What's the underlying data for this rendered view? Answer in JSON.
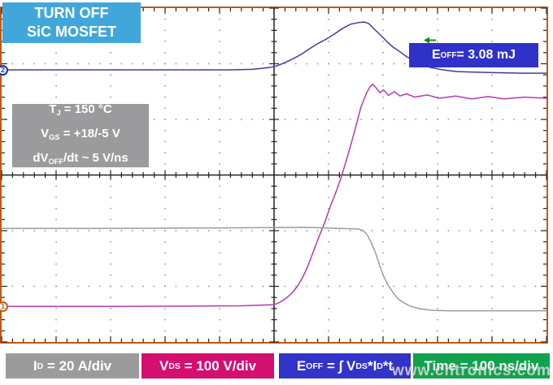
{
  "title_box": {
    "line1": "TURN OFF",
    "line2": "SiC MOSFET",
    "bg": "#41A7DB"
  },
  "conditions_box": {
    "bg": "#9B9B9D",
    "lines": [
      [
        {
          "t": "T"
        },
        {
          "t": "J",
          "sub": true
        },
        {
          "t": " = 150 °C"
        }
      ],
      [
        {
          "t": "V"
        },
        {
          "t": "GS",
          "sub": true
        },
        {
          "t": " = +18/-5 V"
        }
      ],
      [
        {
          "t": "dV"
        },
        {
          "t": "OFF",
          "sub": true
        },
        {
          "t": "/dt ~ 5 V/ns"
        }
      ]
    ]
  },
  "eoff_badge": {
    "bg": "#2F31C8",
    "rich": [
      {
        "t": "E"
      },
      {
        "t": "OFF",
        "sub": true
      },
      {
        "t": " = 3.08 mJ"
      }
    ]
  },
  "trigger_marker": {
    "color": "#168A16",
    "shape": "left-arrow"
  },
  "channel_markers": [
    {
      "label": "2",
      "color": "#23319B",
      "y_div": 1.12
    },
    {
      "label": "1",
      "color": "#C25B12",
      "y_div": 5.36
    }
  ],
  "legend": [
    {
      "bg": "#9B9B9D",
      "rich": [
        {
          "t": "I"
        },
        {
          "t": "D",
          "sub": true
        },
        {
          "t": " = 20 A/div"
        }
      ]
    },
    {
      "bg": "#D30F70",
      "rich": [
        {
          "t": "V"
        },
        {
          "t": "DS",
          "sub": true
        },
        {
          "t": " = 100 V/div"
        }
      ]
    },
    {
      "bg": "#3133C9",
      "rich": [
        {
          "t": "E"
        },
        {
          "t": "OFF",
          "sub": true
        },
        {
          "t": " = ∫ V"
        },
        {
          "t": "DS",
          "sub": true
        },
        {
          "t": "*I"
        },
        {
          "t": "D",
          "sub": true
        },
        {
          "t": "*t"
        }
      ]
    },
    {
      "bg": "#12A24D",
      "rich": [
        {
          "t": "Time = 100 ns/div"
        }
      ]
    }
  ],
  "watermark": {
    "text": "www.cntronics.com",
    "color": "#D9D9D9"
  },
  "chart_data": {
    "type": "line",
    "title": "TURN OFF SiC MOSFET",
    "grid": {
      "x_divisions": 10,
      "y_divisions": 6,
      "style": "oscilloscope graticule: dotted minor grid on division lines, solid ticked center axes, ticked border"
    },
    "axes": {
      "x": {
        "label": "Time",
        "scale_ns_per_div": 100,
        "range_ns": [
          0,
          1000
        ]
      }
    },
    "readings": {
      "eoff_mJ": 3.08,
      "vds_settle_V": 380,
      "vds_peak_overshoot_V": 403,
      "id_on_A": 30,
      "tj_C": 150,
      "vgs_V": "+18/-5",
      "dvoff_dt_V_per_ns": 5
    },
    "series": [
      {
        "id": "eoff",
        "name": "EOFF turn-off energy (math trace)",
        "color": "#3B3F9D",
        "scale": "math (peak 3.08 mJ shown in badge)",
        "points_div": [
          [
            0,
            1.11
          ],
          [
            1.5,
            1.11
          ],
          [
            3,
            1.11
          ],
          [
            4.2,
            1.11
          ],
          [
            4.6,
            1.1
          ],
          [
            4.9,
            1.07
          ],
          [
            5.05,
            1.04
          ],
          [
            5.2,
            0.98
          ],
          [
            5.35,
            0.91
          ],
          [
            5.5,
            0.83
          ],
          [
            5.65,
            0.73
          ],
          [
            5.8,
            0.64
          ],
          [
            5.95,
            0.56
          ],
          [
            6.1,
            0.47
          ],
          [
            6.25,
            0.37
          ],
          [
            6.4,
            0.29
          ],
          [
            6.55,
            0.26
          ],
          [
            6.66,
            0.25
          ],
          [
            6.74,
            0.28
          ],
          [
            6.84,
            0.38
          ],
          [
            6.95,
            0.48
          ],
          [
            7.06,
            0.59
          ],
          [
            7.18,
            0.7
          ],
          [
            7.29,
            0.77
          ],
          [
            7.43,
            0.87
          ],
          [
            7.58,
            0.95
          ],
          [
            7.73,
            1.02
          ],
          [
            7.88,
            1.07
          ],
          [
            8.1,
            1.11
          ],
          [
            8.35,
            1.14
          ],
          [
            8.65,
            1.15
          ],
          [
            9.1,
            1.16
          ],
          [
            9.55,
            1.17
          ],
          [
            10,
            1.17
          ]
        ]
      },
      {
        "id": "vds",
        "name": "VDS drain-source voltage",
        "color": "#B43CB0",
        "scale": "100 V/div",
        "zero_y_div": 5.36,
        "points_div": [
          [
            0,
            5.36
          ],
          [
            2.2,
            5.36
          ],
          [
            4.4,
            5.35
          ],
          [
            5.0,
            5.33
          ],
          [
            5.1,
            5.29
          ],
          [
            5.2,
            5.23
          ],
          [
            5.32,
            5.13
          ],
          [
            5.43,
            5.0
          ],
          [
            5.53,
            4.83
          ],
          [
            5.62,
            4.64
          ],
          [
            5.72,
            4.38
          ],
          [
            5.82,
            4.12
          ],
          [
            5.92,
            3.88
          ],
          [
            6.02,
            3.6
          ],
          [
            6.12,
            3.35
          ],
          [
            6.22,
            3.08
          ],
          [
            6.32,
            2.76
          ],
          [
            6.42,
            2.42
          ],
          [
            6.52,
            2.06
          ],
          [
            6.6,
            1.76
          ],
          [
            6.7,
            1.52
          ],
          [
            6.77,
            1.4
          ],
          [
            6.81,
            1.37
          ],
          [
            6.87,
            1.43
          ],
          [
            6.94,
            1.52
          ],
          [
            7.01,
            1.47
          ],
          [
            7.1,
            1.57
          ],
          [
            7.21,
            1.5
          ],
          [
            7.31,
            1.58
          ],
          [
            7.43,
            1.54
          ],
          [
            7.58,
            1.6
          ],
          [
            7.81,
            1.56
          ],
          [
            8.03,
            1.62
          ],
          [
            8.33,
            1.58
          ],
          [
            8.63,
            1.63
          ],
          [
            8.93,
            1.59
          ],
          [
            9.22,
            1.63
          ],
          [
            9.6,
            1.6
          ],
          [
            10,
            1.62
          ]
        ]
      },
      {
        "id": "id",
        "name": "ID drain current",
        "color": "#9C9C9C",
        "scale": "20 A/div",
        "zero_y_div": 5.45,
        "points_div": [
          [
            0,
            3.96
          ],
          [
            2,
            3.96
          ],
          [
            4,
            3.95
          ],
          [
            5.6,
            3.94
          ],
          [
            6.2,
            3.96
          ],
          [
            6.55,
            3.97
          ],
          [
            6.64,
            4.0
          ],
          [
            6.72,
            4.09
          ],
          [
            6.79,
            4.23
          ],
          [
            6.87,
            4.42
          ],
          [
            6.94,
            4.63
          ],
          [
            7.01,
            4.82
          ],
          [
            7.1,
            4.99
          ],
          [
            7.19,
            5.12
          ],
          [
            7.28,
            5.23
          ],
          [
            7.39,
            5.3
          ],
          [
            7.51,
            5.36
          ],
          [
            7.66,
            5.4
          ],
          [
            7.88,
            5.43
          ],
          [
            8.18,
            5.44
          ],
          [
            8.93,
            5.44
          ],
          [
            10,
            5.44
          ]
        ]
      }
    ]
  }
}
